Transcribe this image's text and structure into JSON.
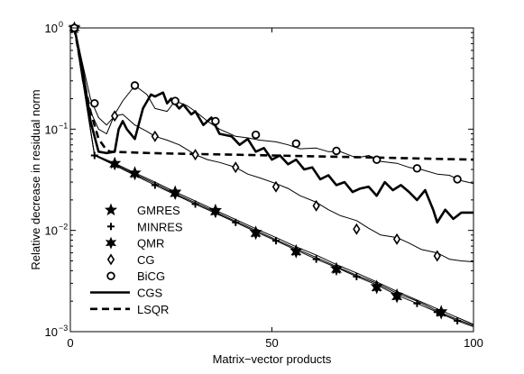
{
  "chart_data": {
    "type": "line",
    "title": "",
    "xlabel": "Matrix−vector products",
    "ylabel": "Relative decrease in residual norm",
    "xlim": [
      0,
      100
    ],
    "ylim": [
      0.001,
      1
    ],
    "yscale": "log",
    "x_ticks": [
      0,
      50,
      100
    ],
    "x_tick_labels": [
      "0",
      "50",
      "100"
    ],
    "y_ticks": [
      0.001,
      0.01,
      0.1,
      1
    ],
    "y_tick_labels": [
      "10",
      "10",
      "10",
      "10"
    ],
    "y_tick_exponents": [
      "−3",
      "−2",
      "−1",
      "0"
    ],
    "grid": false,
    "legend_position": "lower-left",
    "series": [
      {
        "name": "GMRES",
        "marker": "star5",
        "line": "thin",
        "x": [
          1,
          6,
          11,
          16,
          21,
          26,
          31,
          36,
          41,
          46,
          51,
          56,
          61,
          66,
          71,
          76,
          81,
          86,
          91,
          96,
          100
        ],
        "y": [
          1.0,
          0.056,
          0.046,
          0.037,
          0.03,
          0.024,
          0.0195,
          0.0158,
          0.0128,
          0.0104,
          0.0085,
          0.0069,
          0.0057,
          0.0046,
          0.0038,
          0.0031,
          0.0025,
          0.00205,
          0.00168,
          0.00138,
          0.00118
        ],
        "marker_x": [
          1,
          11,
          16,
          26,
          36,
          46,
          56,
          66,
          76,
          81,
          92
        ],
        "marker_y": [
          1.0,
          0.046,
          0.037,
          0.024,
          0.0158,
          0.0096,
          0.0063,
          0.0042,
          0.0028,
          0.0023,
          0.00158
        ]
      },
      {
        "name": "MINRES",
        "marker": "plus",
        "line": "thin",
        "x": [
          1,
          6,
          11,
          16,
          21,
          26,
          31,
          36,
          41,
          46,
          51,
          56,
          61,
          66,
          71,
          76,
          81,
          86,
          91,
          96,
          100
        ],
        "y": [
          1.0,
          0.055,
          0.044,
          0.035,
          0.028,
          0.0225,
          0.0182,
          0.0148,
          0.012,
          0.0097,
          0.0079,
          0.0064,
          0.0052,
          0.0043,
          0.0035,
          0.0029,
          0.0023,
          0.0019,
          0.00156,
          0.00128,
          0.00112
        ],
        "marker_x": [
          6,
          11,
          16,
          21,
          26,
          31,
          36,
          41,
          46,
          51,
          56,
          61,
          66,
          71,
          76,
          81,
          86,
          91,
          96
        ],
        "marker_y": [
          0.055,
          0.044,
          0.035,
          0.028,
          0.0225,
          0.0182,
          0.0148,
          0.012,
          0.0097,
          0.0079,
          0.0064,
          0.0052,
          0.0043,
          0.0035,
          0.0029,
          0.0023,
          0.0019,
          0.00156,
          0.00128
        ]
      },
      {
        "name": "QMR",
        "marker": "star6",
        "line": "thin",
        "x": [
          1,
          6,
          11,
          16,
          21,
          26,
          31,
          36,
          41,
          46,
          51,
          56,
          61,
          66,
          71,
          76,
          81,
          86,
          91,
          96,
          100
        ],
        "y": [
          1.0,
          0.055,
          0.045,
          0.036,
          0.029,
          0.023,
          0.0188,
          0.0152,
          0.0123,
          0.01,
          0.0081,
          0.0066,
          0.0054,
          0.0044,
          0.0036,
          0.003,
          0.0024,
          0.002,
          0.0016,
          0.00132,
          0.00115
        ],
        "marker_x": [
          1,
          11,
          16,
          26,
          36,
          46,
          56,
          66,
          76,
          81,
          92
        ],
        "marker_y": [
          1.0,
          0.045,
          0.036,
          0.023,
          0.0152,
          0.0093,
          0.0061,
          0.0041,
          0.0027,
          0.0022,
          0.00152
        ]
      },
      {
        "name": "CG",
        "marker": "diamond",
        "line": "thin",
        "x": [
          1,
          3,
          5,
          7,
          9,
          11,
          13,
          16,
          19,
          21,
          24,
          27,
          31,
          34,
          37,
          41,
          44,
          47,
          51,
          54,
          57,
          61,
          64,
          67,
          71,
          74,
          77,
          81,
          84,
          87,
          91,
          94,
          97,
          100
        ],
        "y": [
          1.0,
          0.45,
          0.2,
          0.13,
          0.11,
          0.135,
          0.14,
          0.11,
          0.095,
          0.085,
          0.078,
          0.07,
          0.056,
          0.05,
          0.047,
          0.042,
          0.036,
          0.033,
          0.029,
          0.026,
          0.022,
          0.019,
          0.016,
          0.014,
          0.0125,
          0.0105,
          0.009,
          0.0085,
          0.0075,
          0.0065,
          0.006,
          0.0052,
          0.005,
          0.0049
        ],
        "marker_x": [
          1,
          11,
          21,
          31,
          41,
          51,
          61,
          71,
          81,
          91
        ],
        "marker_y": [
          1.0,
          0.135,
          0.085,
          0.056,
          0.042,
          0.027,
          0.0175,
          0.0103,
          0.0082,
          0.0056
        ]
      },
      {
        "name": "BiCG",
        "marker": "circle",
        "line": "thin",
        "x": [
          1,
          3,
          5,
          7,
          9,
          11,
          13,
          16,
          19,
          21,
          24,
          26,
          29,
          31,
          34,
          37,
          41,
          44,
          47,
          51,
          54,
          57,
          61,
          64,
          67,
          71,
          74,
          77,
          81,
          84,
          87,
          91,
          94,
          97,
          100
        ],
        "y": [
          1.0,
          0.3,
          0.15,
          0.1,
          0.09,
          0.14,
          0.19,
          0.27,
          0.22,
          0.16,
          0.15,
          0.19,
          0.17,
          0.15,
          0.12,
          0.1,
          0.085,
          0.082,
          0.078,
          0.075,
          0.07,
          0.064,
          0.065,
          0.06,
          0.06,
          0.052,
          0.055,
          0.048,
          0.046,
          0.042,
          0.04,
          0.036,
          0.035,
          0.031,
          0.029
        ],
        "marker_x": [
          1,
          6,
          16,
          26,
          36,
          46,
          56,
          66,
          76,
          86,
          96
        ],
        "marker_y": [
          1.0,
          0.18,
          0.27,
          0.19,
          0.12,
          0.088,
          0.072,
          0.061,
          0.05,
          0.041,
          0.032
        ]
      },
      {
        "name": "CGS",
        "marker": "none",
        "line": "thick-solid",
        "x": [
          1,
          3,
          5,
          7,
          9,
          11,
          12,
          13,
          14,
          16,
          18,
          20,
          21,
          23,
          24,
          25,
          27,
          28,
          30,
          31,
          33,
          35,
          37,
          40,
          42,
          44,
          46,
          48,
          50,
          52,
          54,
          56,
          58,
          60,
          62,
          64,
          66,
          68,
          70,
          72,
          74,
          76,
          78,
          80,
          82,
          84,
          86,
          88,
          90,
          91,
          93,
          95,
          97,
          100
        ],
        "y": [
          1.0,
          0.4,
          0.12,
          0.06,
          0.058,
          0.06,
          0.1,
          0.12,
          0.1,
          0.08,
          0.16,
          0.22,
          0.21,
          0.23,
          0.18,
          0.2,
          0.16,
          0.175,
          0.14,
          0.15,
          0.11,
          0.13,
          0.09,
          0.085,
          0.07,
          0.08,
          0.06,
          0.065,
          0.05,
          0.055,
          0.045,
          0.05,
          0.04,
          0.042,
          0.032,
          0.035,
          0.028,
          0.03,
          0.024,
          0.026,
          0.027,
          0.022,
          0.03,
          0.025,
          0.028,
          0.024,
          0.02,
          0.025,
          0.016,
          0.012,
          0.016,
          0.013,
          0.015,
          0.015
        ]
      },
      {
        "name": "LSQR",
        "marker": "none",
        "line": "thick-dashed",
        "x": [
          1,
          3,
          5,
          7,
          9,
          10,
          15,
          20,
          30,
          40,
          50,
          60,
          70,
          80,
          90,
          100
        ],
        "y": [
          1.0,
          0.35,
          0.15,
          0.08,
          0.062,
          0.06,
          0.059,
          0.058,
          0.057,
          0.056,
          0.055,
          0.054,
          0.053,
          0.052,
          0.051,
          0.05
        ]
      }
    ]
  }
}
